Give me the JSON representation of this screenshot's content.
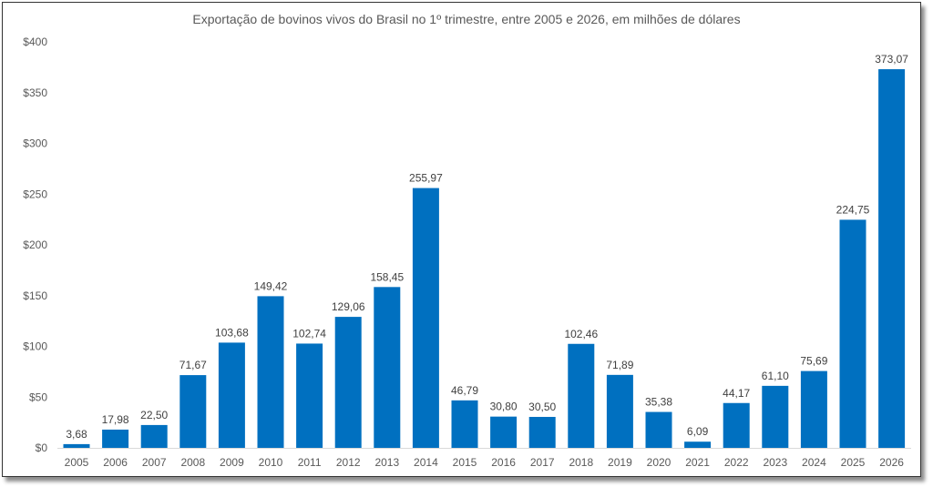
{
  "chart_data": {
    "type": "bar",
    "title": "Exportação de bovinos vivos do Brasil no 1º trimestre, entre 2005 e 2026, em milhões de dólares",
    "xlabel": "",
    "ylabel": "",
    "ylim": [
      0,
      400
    ],
    "yticks": [
      0,
      50,
      100,
      150,
      200,
      250,
      300,
      350,
      400
    ],
    "ytick_labels": [
      "$0",
      "$50",
      "$100",
      "$150",
      "$200",
      "$250",
      "$300",
      "$350",
      "$400"
    ],
    "grid": false,
    "legend": "none",
    "bar_color": "#0070C0",
    "categories": [
      "2005",
      "2006",
      "2007",
      "2008",
      "2009",
      "2010",
      "2011",
      "2012",
      "2013",
      "2014",
      "2015",
      "2016",
      "2017",
      "2018",
      "2019",
      "2020",
      "2021",
      "2022",
      "2023",
      "2024",
      "2025",
      "2026"
    ],
    "values": [
      3.68,
      17.98,
      22.5,
      71.67,
      103.68,
      149.42,
      102.74,
      129.06,
      158.45,
      255.97,
      46.79,
      30.8,
      30.5,
      102.46,
      71.89,
      35.38,
      6.09,
      44.17,
      61.1,
      75.69,
      224.75,
      373.07
    ],
    "data_labels": [
      "3,68",
      "17,98",
      "22,50",
      "71,67",
      "103,68",
      "149,42",
      "102,74",
      "129,06",
      "158,45",
      "255,97",
      "46,79",
      "30,80",
      "30,50",
      "102,46",
      "71,89",
      "35,38",
      "6,09",
      "44,17",
      "61,10",
      "75,69",
      "224,75",
      "373,07"
    ]
  }
}
